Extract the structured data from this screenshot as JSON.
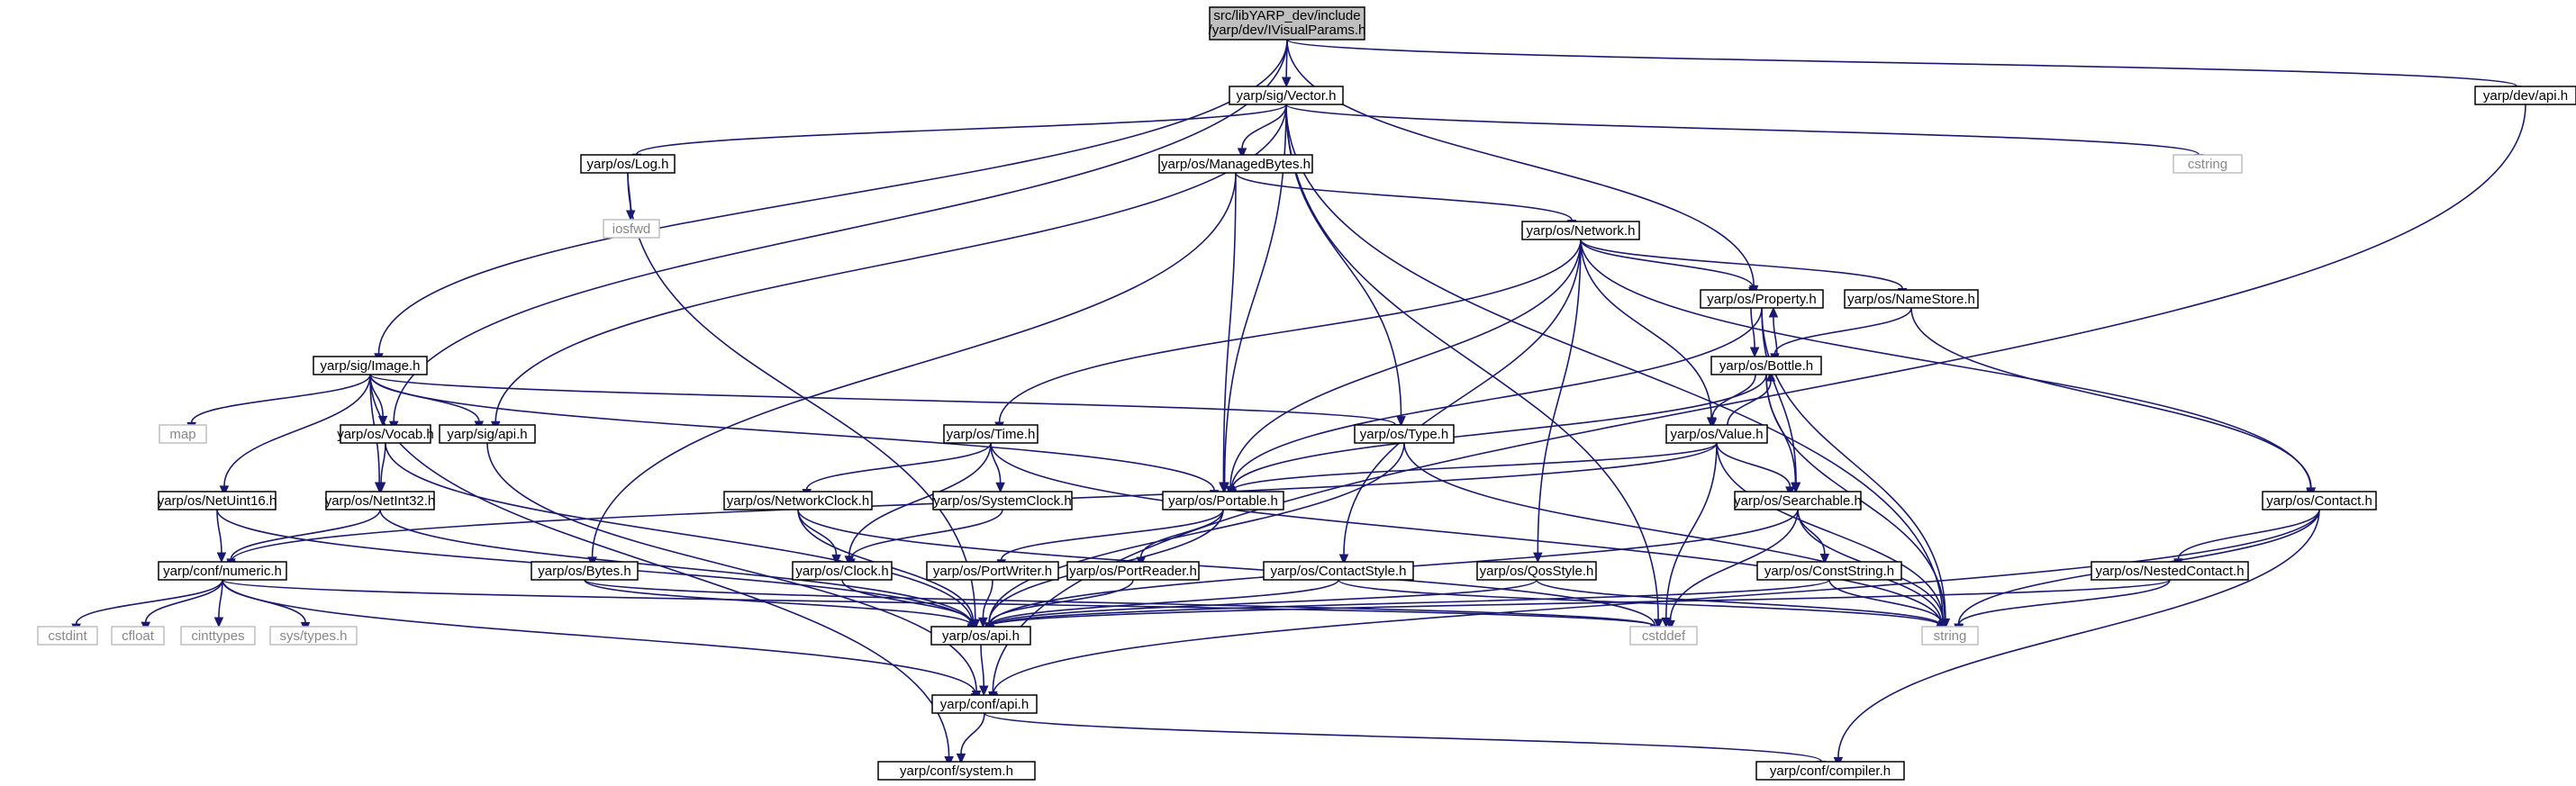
{
  "graph": {
    "root_label_line1": "src/libYARP_dev/include",
    "root_label_line2": "/yarp/dev/IVisualParams.h",
    "colors": {
      "edge": "#191970",
      "root_fill": "#bfbfbf",
      "external_border": "#bfbfbf"
    },
    "nodes": [
      {
        "id": "root",
        "label": "src/libYARP_dev/include /yarp/dev/IVisualParams.h",
        "kind": "root"
      },
      {
        "id": "vector",
        "label": "yarp/sig/Vector.h",
        "kind": "header"
      },
      {
        "id": "devapi",
        "label": "yarp/dev/api.h",
        "kind": "header"
      },
      {
        "id": "log",
        "label": "yarp/os/Log.h",
        "kind": "header"
      },
      {
        "id": "managedbytes",
        "label": "yarp/os/ManagedBytes.h",
        "kind": "header"
      },
      {
        "id": "cstring",
        "label": "cstring",
        "kind": "external"
      },
      {
        "id": "iosfwd",
        "label": "iosfwd",
        "kind": "external"
      },
      {
        "id": "network",
        "label": "yarp/os/Network.h",
        "kind": "header"
      },
      {
        "id": "property",
        "label": "yarp/os/Property.h",
        "kind": "header"
      },
      {
        "id": "namestore",
        "label": "yarp/os/NameStore.h",
        "kind": "header"
      },
      {
        "id": "image",
        "label": "yarp/sig/Image.h",
        "kind": "header"
      },
      {
        "id": "bottle",
        "label": "yarp/os/Bottle.h",
        "kind": "header"
      },
      {
        "id": "map",
        "label": "map",
        "kind": "external"
      },
      {
        "id": "vocab",
        "label": "yarp/os/Vocab.h",
        "kind": "header"
      },
      {
        "id": "sigapi",
        "label": "yarp/sig/api.h",
        "kind": "header"
      },
      {
        "id": "time",
        "label": "yarp/os/Time.h",
        "kind": "header"
      },
      {
        "id": "type",
        "label": "yarp/os/Type.h",
        "kind": "header"
      },
      {
        "id": "value",
        "label": "yarp/os/Value.h",
        "kind": "header"
      },
      {
        "id": "netuint16",
        "label": "yarp/os/NetUint16.h",
        "kind": "header"
      },
      {
        "id": "netint32",
        "label": "yarp/os/NetInt32.h",
        "kind": "header"
      },
      {
        "id": "networkclock",
        "label": "yarp/os/NetworkClock.h",
        "kind": "header"
      },
      {
        "id": "systemclock",
        "label": "yarp/os/SystemClock.h",
        "kind": "header"
      },
      {
        "id": "portable",
        "label": "yarp/os/Portable.h",
        "kind": "header"
      },
      {
        "id": "searchable",
        "label": "yarp/os/Searchable.h",
        "kind": "header"
      },
      {
        "id": "contact",
        "label": "yarp/os/Contact.h",
        "kind": "header"
      },
      {
        "id": "numeric",
        "label": "yarp/conf/numeric.h",
        "kind": "header"
      },
      {
        "id": "bytes",
        "label": "yarp/os/Bytes.h",
        "kind": "header"
      },
      {
        "id": "clock",
        "label": "yarp/os/Clock.h",
        "kind": "header"
      },
      {
        "id": "portwriter",
        "label": "yarp/os/PortWriter.h",
        "kind": "header"
      },
      {
        "id": "portreader",
        "label": "yarp/os/PortReader.h",
        "kind": "header"
      },
      {
        "id": "contactstyle",
        "label": "yarp/os/ContactStyle.h",
        "kind": "header"
      },
      {
        "id": "qosstyle",
        "label": "yarp/os/QosStyle.h",
        "kind": "header"
      },
      {
        "id": "conststring",
        "label": "yarp/os/ConstString.h",
        "kind": "header"
      },
      {
        "id": "nestedcontact",
        "label": "yarp/os/NestedContact.h",
        "kind": "header"
      },
      {
        "id": "cstdint",
        "label": "cstdint",
        "kind": "external"
      },
      {
        "id": "cfloat",
        "label": "cfloat",
        "kind": "external"
      },
      {
        "id": "cinttypes",
        "label": "cinttypes",
        "kind": "external"
      },
      {
        "id": "systypes",
        "label": "sys/types.h",
        "kind": "external"
      },
      {
        "id": "osapi",
        "label": "yarp/os/api.h",
        "kind": "header"
      },
      {
        "id": "cstddef",
        "label": "cstddef",
        "kind": "external"
      },
      {
        "id": "string",
        "label": "string",
        "kind": "external"
      },
      {
        "id": "confapi",
        "label": "yarp/conf/api.h",
        "kind": "header"
      },
      {
        "id": "system",
        "label": "yarp/conf/system.h",
        "kind": "header"
      },
      {
        "id": "compiler",
        "label": "yarp/conf/compiler.h",
        "kind": "header"
      }
    ],
    "edges": [
      [
        "root",
        "vector"
      ],
      [
        "root",
        "devapi"
      ],
      [
        "root",
        "image"
      ],
      [
        "root",
        "vocab"
      ],
      [
        "root",
        "property"
      ],
      [
        "vector",
        "log"
      ],
      [
        "vector",
        "managedbytes"
      ],
      [
        "vector",
        "cstring"
      ],
      [
        "vector",
        "sigapi"
      ],
      [
        "vector",
        "portable"
      ],
      [
        "vector",
        "type"
      ],
      [
        "vector",
        "string"
      ],
      [
        "vector",
        "cstddef"
      ],
      [
        "devapi",
        "confapi"
      ],
      [
        "log",
        "iosfwd"
      ],
      [
        "log",
        "osapi"
      ],
      [
        "managedbytes",
        "network"
      ],
      [
        "managedbytes",
        "bytes"
      ],
      [
        "managedbytes",
        "portable"
      ],
      [
        "network",
        "property"
      ],
      [
        "network",
        "namestore"
      ],
      [
        "network",
        "time"
      ],
      [
        "network",
        "portable"
      ],
      [
        "network",
        "value"
      ],
      [
        "network",
        "contactstyle"
      ],
      [
        "network",
        "qosstyle"
      ],
      [
        "network",
        "contact"
      ],
      [
        "property",
        "bottle"
      ],
      [
        "property",
        "searchable"
      ],
      [
        "property",
        "portable"
      ],
      [
        "property",
        "string"
      ],
      [
        "namestore",
        "bottle"
      ],
      [
        "namestore",
        "contact"
      ],
      [
        "image",
        "map"
      ],
      [
        "image",
        "vocab"
      ],
      [
        "image",
        "sigapi"
      ],
      [
        "image",
        "type"
      ],
      [
        "image",
        "portable"
      ],
      [
        "image",
        "netuint16"
      ],
      [
        "image",
        "netint32"
      ],
      [
        "image",
        "system"
      ],
      [
        "bottle",
        "property"
      ],
      [
        "bottle",
        "value"
      ],
      [
        "bottle",
        "searchable"
      ],
      [
        "bottle",
        "portable"
      ],
      [
        "bottle",
        "string"
      ],
      [
        "value",
        "bottle"
      ],
      [
        "value",
        "searchable"
      ],
      [
        "value",
        "portable"
      ],
      [
        "value",
        "numeric"
      ],
      [
        "value",
        "cstddef"
      ],
      [
        "value",
        "string"
      ],
      [
        "vocab",
        "netint32"
      ],
      [
        "vocab",
        "osapi"
      ],
      [
        "sigapi",
        "confapi"
      ],
      [
        "time",
        "networkclock"
      ],
      [
        "time",
        "systemclock"
      ],
      [
        "time",
        "clock"
      ],
      [
        "time",
        "string"
      ],
      [
        "type",
        "osapi"
      ],
      [
        "type",
        "string"
      ],
      [
        "netuint16",
        "numeric"
      ],
      [
        "netuint16",
        "osapi"
      ],
      [
        "netint32",
        "numeric"
      ],
      [
        "netint32",
        "osapi"
      ],
      [
        "networkclock",
        "clock"
      ],
      [
        "networkclock",
        "osapi"
      ],
      [
        "networkclock",
        "cstddef"
      ],
      [
        "systemclock",
        "clock"
      ],
      [
        "portable",
        "portwriter"
      ],
      [
        "portable",
        "portreader"
      ],
      [
        "portable",
        "osapi"
      ],
      [
        "searchable",
        "conststring"
      ],
      [
        "searchable",
        "osapi"
      ],
      [
        "searchable",
        "cstddef"
      ],
      [
        "searchable",
        "string"
      ],
      [
        "contact",
        "nestedcontact"
      ],
      [
        "contact",
        "string"
      ],
      [
        "contact",
        "confapi"
      ],
      [
        "contact",
        "compiler"
      ],
      [
        "numeric",
        "cstdint"
      ],
      [
        "numeric",
        "cfloat"
      ],
      [
        "numeric",
        "cinttypes"
      ],
      [
        "numeric",
        "systypes"
      ],
      [
        "numeric",
        "confapi"
      ],
      [
        "numeric",
        "cstddef"
      ],
      [
        "bytes",
        "osapi"
      ],
      [
        "bytes",
        "cstddef"
      ],
      [
        "clock",
        "osapi"
      ],
      [
        "portwriter",
        "osapi"
      ],
      [
        "portreader",
        "osapi"
      ],
      [
        "contactstyle",
        "osapi"
      ],
      [
        "contactstyle",
        "string"
      ],
      [
        "qosstyle",
        "osapi"
      ],
      [
        "qosstyle",
        "string"
      ],
      [
        "conststring",
        "osapi"
      ],
      [
        "conststring",
        "string"
      ],
      [
        "nestedcontact",
        "osapi"
      ],
      [
        "nestedcontact",
        "string"
      ],
      [
        "osapi",
        "confapi"
      ],
      [
        "confapi",
        "system"
      ],
      [
        "confapi",
        "compiler"
      ]
    ]
  }
}
